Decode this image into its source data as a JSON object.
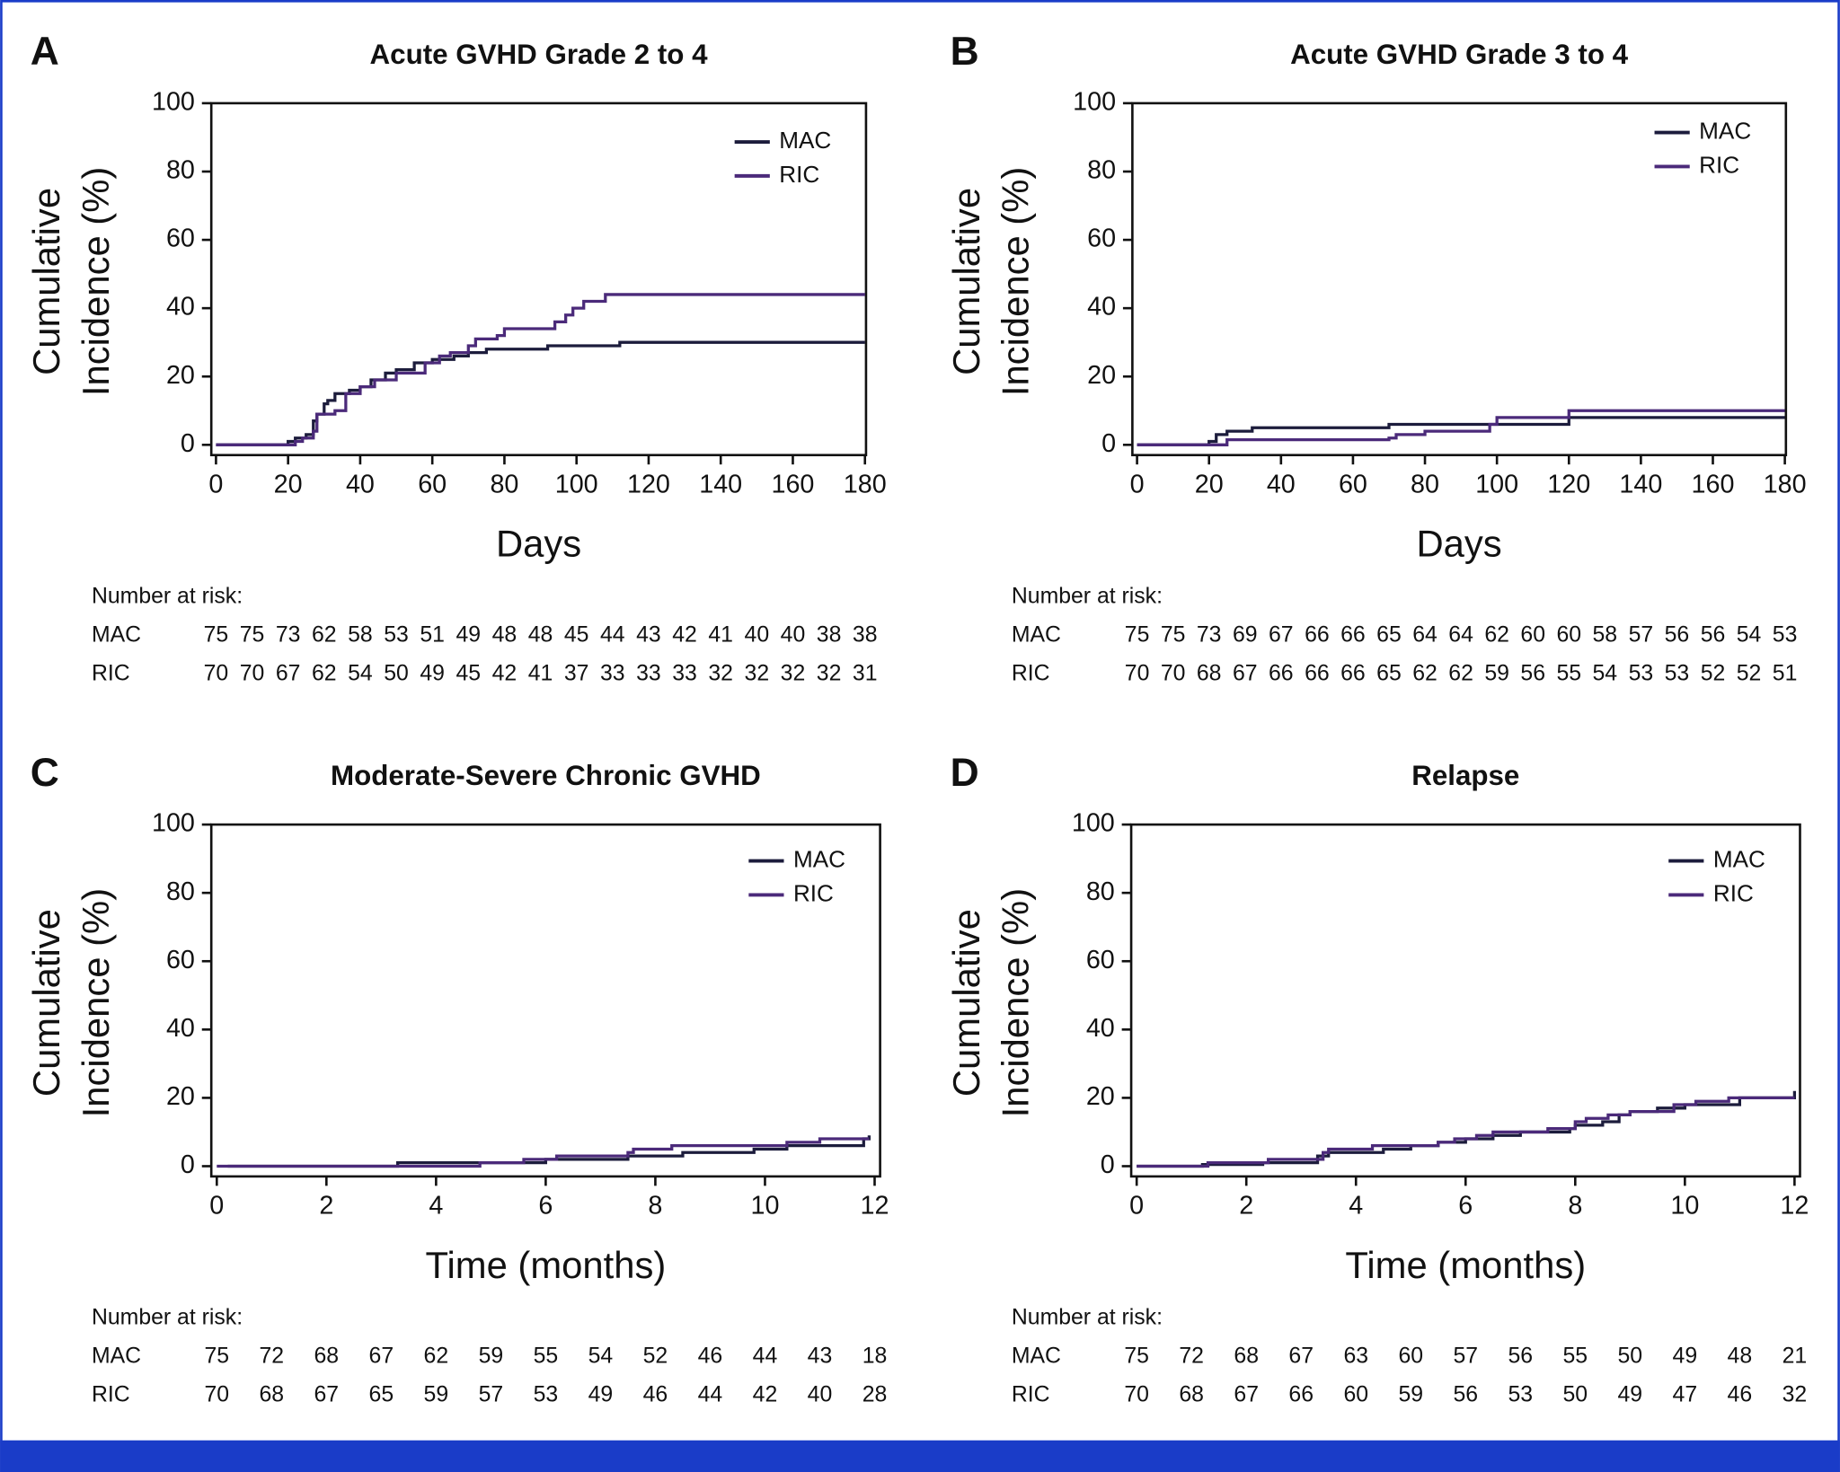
{
  "chart_data": [
    {
      "type": "line",
      "step": true,
      "panel": "A",
      "title": "Acute GVHD Grade 2 to 4",
      "xlabel": "Days",
      "ylabel": [
        "Cumulative",
        "Incidence (%)"
      ],
      "xlim": [
        -1.3,
        180.3
      ],
      "ylim": [
        -3,
        100
      ],
      "xticks": [
        0,
        20,
        40,
        60,
        80,
        100,
        120,
        140,
        160,
        180
      ],
      "yticks": [
        0,
        20,
        40,
        60,
        80,
        100
      ],
      "series": [
        {
          "name": "MAC",
          "color": "#1c1c3c",
          "x": [
            0,
            19,
            20,
            22,
            25,
            27,
            28,
            30,
            31,
            33,
            37,
            40,
            43,
            47,
            50,
            55,
            60,
            66,
            70,
            75,
            92,
            112,
            180
          ],
          "values": [
            0,
            0,
            1,
            2,
            3,
            7,
            9,
            12,
            13,
            15,
            16,
            17,
            19,
            21,
            22,
            24,
            25,
            26,
            27,
            28,
            29,
            30,
            30
          ]
        },
        {
          "name": "RIC",
          "color": "#4b2a7a",
          "x": [
            0,
            20,
            22,
            24,
            27,
            28,
            33,
            36,
            40,
            44,
            50,
            58,
            62,
            65,
            70,
            72,
            78,
            80,
            94,
            97,
            99,
            102,
            108,
            180
          ],
          "values": [
            0,
            0,
            1,
            2,
            4,
            9,
            10,
            15,
            17,
            19,
            21,
            24,
            26,
            27,
            29,
            31,
            32,
            34,
            36,
            38,
            40,
            42,
            44,
            44
          ]
        }
      ],
      "risk_table": {
        "label": "Number at risk:",
        "rows": [
          {
            "name": "MAC",
            "values": [
              75,
              75,
              73,
              62,
              58,
              53,
              51,
              49,
              48,
              48,
              45,
              44,
              43,
              42,
              41,
              40,
              40,
              38,
              38
            ]
          },
          {
            "name": "RIC",
            "values": [
              70,
              70,
              67,
              62,
              54,
              50,
              49,
              45,
              42,
              41,
              37,
              33,
              33,
              33,
              32,
              32,
              32,
              32,
              31
            ]
          }
        ]
      }
    },
    {
      "type": "line",
      "step": true,
      "panel": "B",
      "title": "Acute GVHD Grade 3 to 4",
      "xlabel": "Days",
      "ylabel": [
        "Cumulative",
        "Incidence (%)"
      ],
      "xlim": [
        -1.3,
        180.3
      ],
      "ylim": [
        -3,
        100
      ],
      "xticks": [
        0,
        20,
        40,
        60,
        80,
        100,
        120,
        140,
        160,
        180
      ],
      "yticks": [
        0,
        20,
        40,
        60,
        80,
        100
      ],
      "series": [
        {
          "name": "MAC",
          "color": "#1c1c3c",
          "x": [
            0,
            20,
            22,
            25,
            32,
            70,
            120,
            180
          ],
          "values": [
            0,
            1,
            3,
            4,
            5,
            6,
            8,
            8
          ]
        },
        {
          "name": "RIC",
          "color": "#4b2a7a",
          "x": [
            0,
            25,
            70,
            72,
            80,
            98,
            100,
            120,
            180
          ],
          "values": [
            0,
            1.5,
            2,
            3,
            4,
            6,
            8,
            10,
            10
          ]
        }
      ],
      "risk_table": {
        "label": "Number at risk:",
        "rows": [
          {
            "name": "MAC",
            "values": [
              75,
              75,
              73,
              69,
              67,
              66,
              66,
              65,
              64,
              64,
              62,
              60,
              60,
              58,
              57,
              56,
              56,
              54,
              53
            ]
          },
          {
            "name": "RIC",
            "values": [
              70,
              70,
              68,
              67,
              66,
              66,
              66,
              65,
              62,
              62,
              59,
              56,
              55,
              54,
              53,
              53,
              52,
              52,
              51
            ]
          }
        ]
      }
    },
    {
      "type": "line",
      "step": true,
      "panel": "C",
      "title": "Moderate-Severe Chronic GVHD",
      "xlabel": "Time (months)",
      "ylabel": [
        "Cumulative",
        "Incidence (%)"
      ],
      "xlim": [
        -0.1,
        12.1
      ],
      "ylim": [
        -3,
        100
      ],
      "xticks": [
        0,
        2,
        4,
        6,
        8,
        10,
        12
      ],
      "yticks": [
        0,
        20,
        40,
        60,
        80,
        100
      ],
      "series": [
        {
          "name": "MAC",
          "color": "#1c1c3c",
          "x": [
            0.2,
            3.3,
            6,
            7.5,
            8.5,
            9.8,
            10.4,
            11.8,
            11.9
          ],
          "values": [
            0,
            1,
            2,
            3,
            4,
            5,
            6,
            8,
            9
          ]
        },
        {
          "name": "RIC",
          "color": "#4b2a7a",
          "x": [
            0,
            4.8,
            5.6,
            6.2,
            7.5,
            7.6,
            8.3,
            10.4,
            11,
            11.9
          ],
          "values": [
            0,
            1,
            2,
            3,
            4,
            5,
            6,
            7,
            8,
            8
          ]
        }
      ],
      "risk_table": {
        "label": "Number at risk:",
        "rows": [
          {
            "name": "MAC",
            "values": [
              75,
              72,
              68,
              67,
              62,
              59,
              55,
              54,
              52,
              46,
              44,
              43,
              18
            ]
          },
          {
            "name": "RIC",
            "values": [
              70,
              68,
              67,
              65,
              59,
              57,
              53,
              49,
              46,
              44,
              42,
              40,
              28
            ]
          }
        ]
      }
    },
    {
      "type": "line",
      "step": true,
      "panel": "D",
      "title": "Relapse",
      "xlabel": "Time (months)",
      "ylabel": [
        "Cumulative",
        "Incidence (%)"
      ],
      "xlim": [
        -0.1,
        12.1
      ],
      "ylim": [
        -3,
        100
      ],
      "xticks": [
        0,
        2,
        4,
        6,
        8,
        10,
        12
      ],
      "yticks": [
        0,
        20,
        40,
        60,
        80,
        100
      ],
      "series": [
        {
          "name": "MAC",
          "color": "#1c1c3c",
          "x": [
            0,
            1.2,
            2.3,
            3.3,
            3.5,
            4.5,
            5,
            5.5,
            6,
            6.5,
            7,
            7.9,
            8,
            8.5,
            8.8,
            9,
            9.5,
            10,
            11,
            12,
            12
          ],
          "values": [
            0,
            0.5,
            1,
            3,
            4,
            5,
            6,
            7,
            8,
            9,
            10,
            11,
            12,
            13,
            15,
            16,
            17,
            18,
            20,
            21,
            22
          ]
        },
        {
          "name": "RIC",
          "color": "#4b2a7a",
          "x": [
            0,
            1.3,
            2.4,
            3.4,
            3.5,
            4.3,
            5.5,
            5.8,
            6.2,
            6.5,
            7.5,
            8,
            8.2,
            8.6,
            9,
            9.8,
            10.2,
            10.8,
            12
          ],
          "values": [
            0,
            1,
            2,
            4,
            5,
            6,
            7,
            8,
            9,
            10,
            11,
            13,
            14,
            15,
            16,
            18,
            19,
            20,
            20
          ]
        }
      ],
      "risk_table": {
        "label": "Number at risk:",
        "rows": [
          {
            "name": "MAC",
            "values": [
              75,
              72,
              68,
              67,
              63,
              60,
              57,
              56,
              55,
              50,
              49,
              48,
              21
            ]
          },
          {
            "name": "RIC",
            "values": [
              70,
              68,
              67,
              66,
              60,
              59,
              56,
              53,
              50,
              49,
              47,
              46,
              32
            ]
          }
        ]
      }
    }
  ]
}
